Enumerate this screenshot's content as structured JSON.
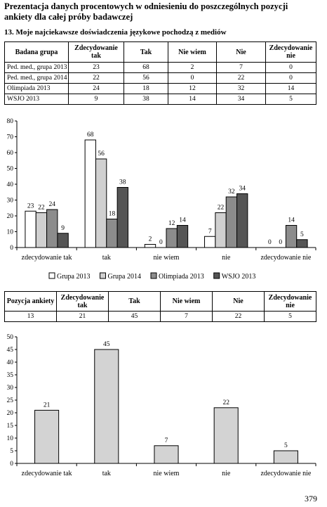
{
  "page": {
    "title": "Prezentacja danych procentowych w odniesieniu do poszczególnych pozycji ankiety dla całej próby badawczej",
    "section_title": "13. Moje najciekawsze doświadczenia językowe pochodzą z mediów",
    "page_number": "379"
  },
  "table1": {
    "headers": [
      "Badana grupa",
      "Zdecydowanie tak",
      "Tak",
      "Nie wiem",
      "Nie",
      "Zdecydowanie nie"
    ],
    "rows": [
      [
        "Ped. med., grupa 2013",
        "23",
        "68",
        "2",
        "7",
        "0"
      ],
      [
        "Ped. med., grupa 2014",
        "22",
        "56",
        "0",
        "22",
        "0"
      ],
      [
        "Olimpiada 2013",
        "24",
        "18",
        "12",
        "32",
        "14"
      ],
      [
        "WSJO 2013",
        "9",
        "38",
        "14",
        "34",
        "5"
      ]
    ]
  },
  "table2": {
    "headers": [
      "Pozycja ankiety",
      "Zdecydowanie tak",
      "Tak",
      "Nie wiem",
      "Nie",
      "Zdecydowanie nie"
    ],
    "rows": [
      [
        "13",
        "21",
        "45",
        "7",
        "22",
        "5"
      ]
    ]
  },
  "chart_data": [
    {
      "type": "bar",
      "categories": [
        "zdecydowanie tak",
        "tak",
        "nie wiem",
        "nie",
        "zdecydowanie nie"
      ],
      "ylim": [
        0,
        80
      ],
      "yticks": [
        0,
        10,
        20,
        30,
        40,
        50,
        60,
        70,
        80
      ],
      "legend_position": "bottom",
      "series": [
        {
          "name": "Grupa 2013",
          "values": [
            23,
            68,
            2,
            7,
            0
          ],
          "color": "#ffffff"
        },
        {
          "name": "Grupa 2014",
          "values": [
            22,
            56,
            0,
            22,
            0
          ],
          "color": "#d0d0d0"
        },
        {
          "name": "Olimpiada 2013",
          "values": [
            24,
            18,
            12,
            32,
            14
          ],
          "color": "#8c8c8c"
        },
        {
          "name": "WSJO 2013",
          "values": [
            9,
            38,
            14,
            34,
            5
          ],
          "color": "#555555"
        }
      ]
    },
    {
      "type": "bar",
      "categories": [
        "zdecydowanie tak",
        "tak",
        "nie wiem",
        "nie",
        "zdecydowanie nie"
      ],
      "ylim": [
        0,
        50
      ],
      "yticks": [
        0,
        5,
        10,
        15,
        20,
        25,
        30,
        35,
        40,
        45,
        50
      ],
      "series": [
        {
          "values": [
            21,
            45,
            7,
            22,
            5
          ],
          "color": "#d3d3d3"
        }
      ]
    }
  ]
}
